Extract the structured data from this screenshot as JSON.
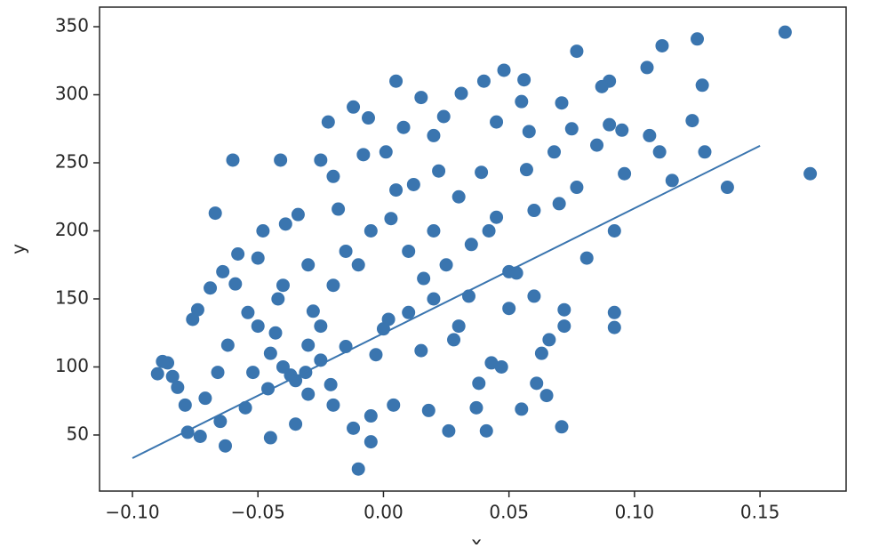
{
  "chart_data": {
    "type": "scatter",
    "xlabel": "x",
    "ylabel": "y",
    "xlim": [
      -0.1131,
      0.1843
    ],
    "ylim": [
      8.8,
      364.4
    ],
    "xticks": [
      {
        "value": -0.1,
        "label": "−0.10"
      },
      {
        "value": -0.05,
        "label": "−0.05"
      },
      {
        "value": 0,
        "label": "0.00"
      },
      {
        "value": 0.05,
        "label": "0.05"
      },
      {
        "value": 0.1,
        "label": "0.10"
      },
      {
        "value": 0.15,
        "label": "0.15"
      }
    ],
    "yticks": [
      50,
      100,
      150,
      200,
      250,
      300,
      350
    ],
    "series": [
      {
        "kind": "scatter",
        "color": "#3a75af",
        "x": [
          0.16,
          0.17,
          0.137,
          0.128,
          0.127,
          0.125,
          0.123,
          0.115,
          0.111,
          0.11,
          0.106,
          0.105,
          0.096,
          0.095,
          0.092,
          0.092,
          0.092,
          0.09,
          0.09,
          0.087,
          0.085,
          0.081,
          0.077,
          0.077,
          0.075,
          0.072,
          0.071,
          0.072,
          0.071,
          0.07,
          0.068,
          0.066,
          0.065,
          0.063,
          0.061,
          0.06,
          0.06,
          0.058,
          0.057,
          0.056,
          0.055,
          0.055,
          0.053,
          0.05,
          0.048,
          0.047,
          0.045,
          0.043,
          0.042,
          0.039,
          0.038,
          0.037,
          0.04,
          0.041,
          0.034,
          0.031,
          0.03,
          0.028,
          0.026,
          0.024,
          0.022,
          0.02,
          0.018,
          0.016,
          0.015,
          0.012,
          0.008,
          0.005,
          0.004,
          0.003,
          0.001,
          0.0,
          -0.003,
          -0.005,
          -0.006,
          -0.008,
          -0.01,
          -0.012,
          -0.015,
          -0.018,
          -0.02,
          -0.021,
          -0.022,
          -0.025,
          -0.028,
          -0.03,
          -0.031,
          -0.034,
          -0.035,
          -0.037,
          -0.039,
          -0.041,
          -0.042,
          -0.043,
          -0.045,
          -0.046,
          -0.048,
          -0.05,
          -0.052,
          -0.054,
          -0.058,
          -0.059,
          -0.06,
          -0.062,
          -0.063,
          -0.064,
          -0.066,
          -0.067,
          -0.069,
          -0.071,
          -0.073,
          -0.074,
          -0.076,
          -0.078,
          -0.079,
          -0.082,
          -0.084,
          -0.086,
          -0.088,
          -0.09,
          -0.04,
          -0.035,
          -0.03,
          -0.025,
          -0.02,
          -0.015,
          -0.012,
          -0.005,
          0.002,
          0.01,
          0.015,
          0.02,
          0.025,
          0.03,
          0.035,
          0.045,
          0.05,
          0.01,
          -0.01,
          -0.02,
          -0.005,
          0.005,
          0.02,
          -0.03,
          -0.045,
          -0.055,
          -0.065,
          -0.05,
          -0.04,
          -0.025
        ],
        "values": [
          346,
          242,
          232,
          258,
          307,
          341,
          281,
          237,
          336,
          258,
          270,
          320,
          242,
          274,
          200,
          140,
          129,
          310,
          278,
          306,
          263,
          180,
          232,
          332,
          275,
          130,
          56,
          142,
          294,
          220,
          258,
          120,
          79,
          110,
          88,
          152,
          215,
          273,
          245,
          311,
          295,
          69,
          169,
          143,
          318,
          100,
          280,
          103,
          200,
          243,
          88,
          70,
          310,
          53,
          152,
          301,
          225,
          120,
          53,
          284,
          244,
          270,
          68,
          165,
          298,
          234,
          276,
          310,
          72,
          209,
          258,
          128,
          109,
          64,
          283,
          256,
          25,
          291,
          185,
          216,
          240,
          87,
          280,
          252,
          141,
          116,
          96,
          212,
          58,
          94,
          205,
          252,
          150,
          125,
          48,
          84,
          200,
          180,
          96,
          140,
          183,
          161,
          252,
          116,
          42,
          170,
          96,
          213,
          158,
          77,
          49,
          142,
          135,
          52,
          72,
          85,
          93,
          103,
          104,
          95,
          100,
          90,
          80,
          105,
          72,
          115,
          55,
          45,
          135,
          140,
          112,
          150,
          175,
          130,
          190,
          210,
          170,
          185,
          175,
          160,
          200,
          230,
          200,
          175,
          110,
          70,
          60,
          130,
          160,
          130
        ]
      },
      {
        "kind": "line",
        "color": "#3a75af",
        "x": [
          -0.1,
          0.15
        ],
        "values": [
          33,
          262.5
        ]
      }
    ]
  }
}
